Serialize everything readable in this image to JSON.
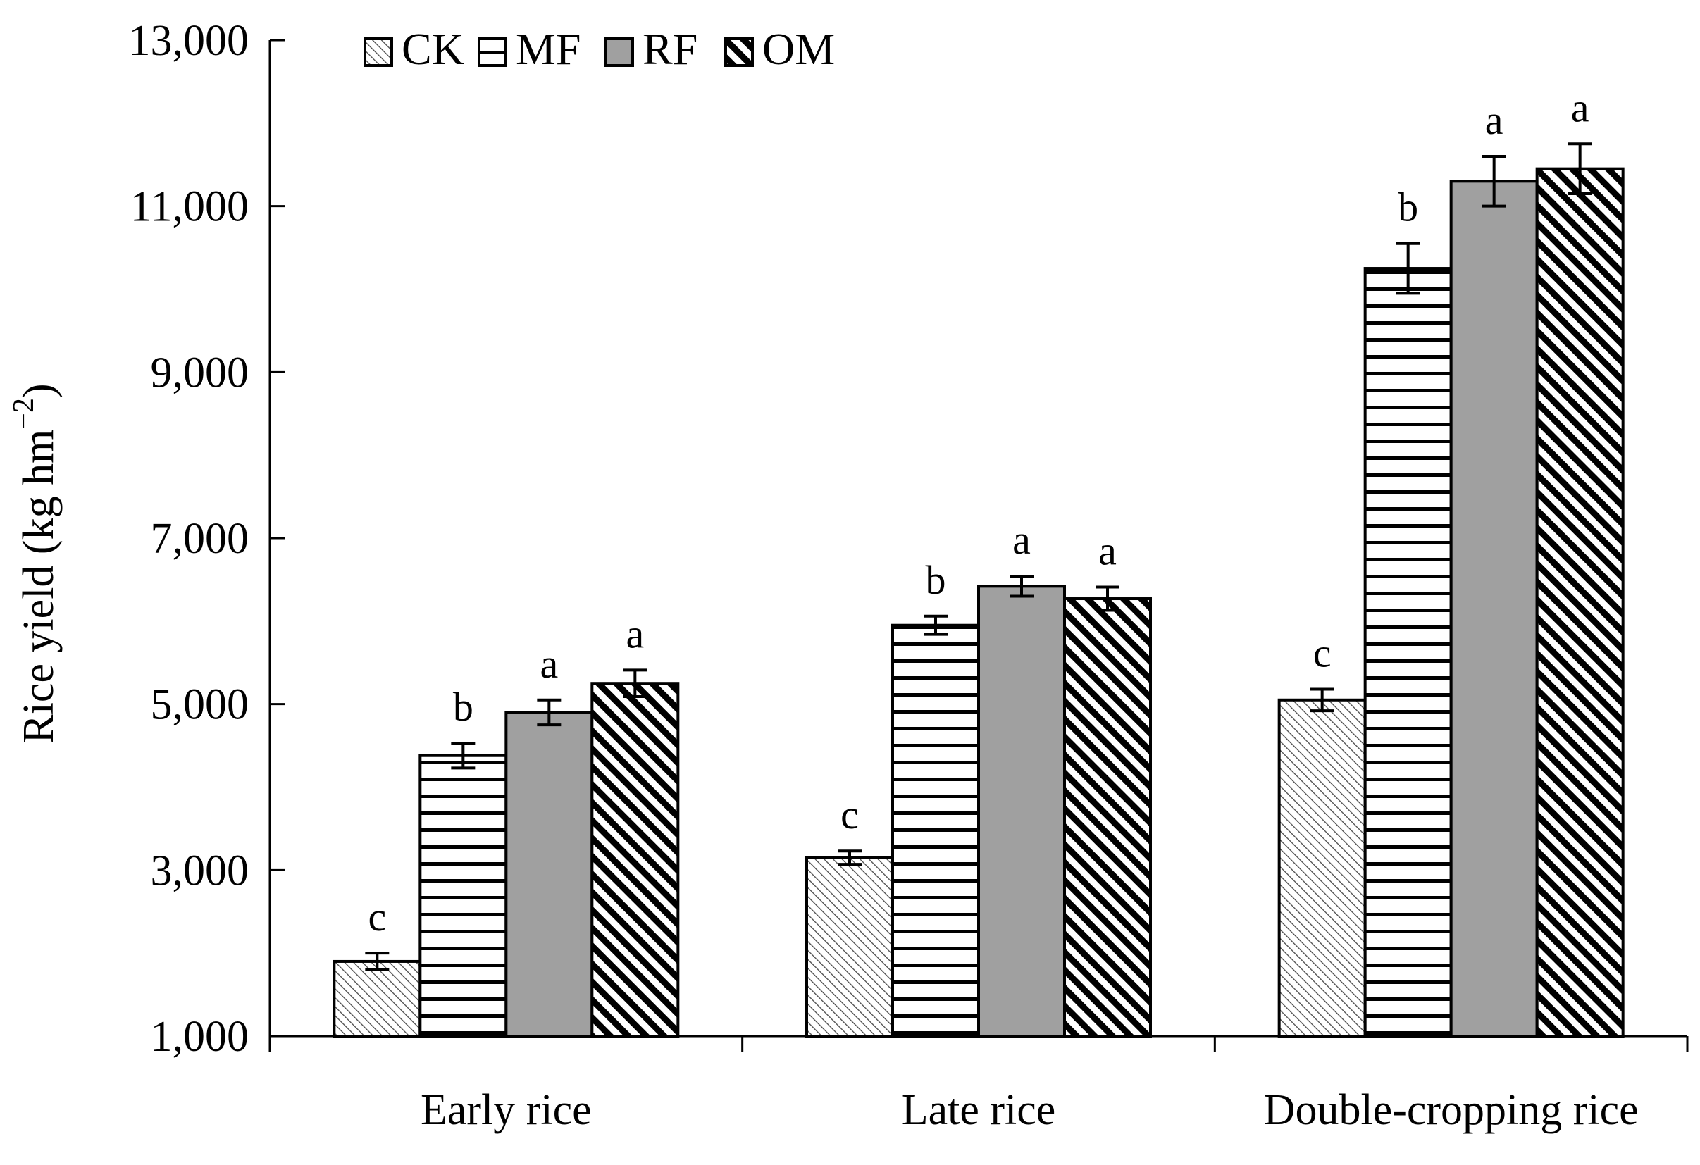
{
  "chart_data": {
    "type": "bar",
    "ylabel": "Rice yield (kg hm",
    "ylabel_superscript": "−2",
    "ylabel_close": ")",
    "xlabel": "",
    "ylim": [
      1000,
      13000
    ],
    "yticks": [
      1000,
      3000,
      5000,
      7000,
      9000,
      11000,
      13000
    ],
    "ytick_labels": [
      "1,000",
      "3,000",
      "5,000",
      "7,000",
      "9,000",
      "11,000",
      "13,000"
    ],
    "categories": [
      "Early rice",
      "Late rice",
      "Double-cropping rice"
    ],
    "legend_position": "top-left",
    "series": [
      {
        "name": "CK",
        "pattern": "diag-fine",
        "values": [
          1900,
          3150,
          5050
        ],
        "errors": [
          100,
          80,
          130
        ],
        "letters": [
          "c",
          "c",
          "c"
        ]
      },
      {
        "name": "MF",
        "pattern": "horizontal",
        "values": [
          4380,
          5950,
          10250
        ],
        "errors": [
          150,
          110,
          300
        ],
        "letters": [
          "b",
          "b",
          "b"
        ]
      },
      {
        "name": "RF",
        "pattern": "solid-gray",
        "values": [
          4900,
          6420,
          11300
        ],
        "errors": [
          150,
          120,
          300
        ],
        "letters": [
          "a",
          "a",
          "a"
        ]
      },
      {
        "name": "OM",
        "pattern": "diag-bold",
        "values": [
          5250,
          6270,
          11450
        ],
        "errors": [
          160,
          140,
          300
        ],
        "letters": [
          "a",
          "a",
          "a"
        ]
      }
    ]
  }
}
